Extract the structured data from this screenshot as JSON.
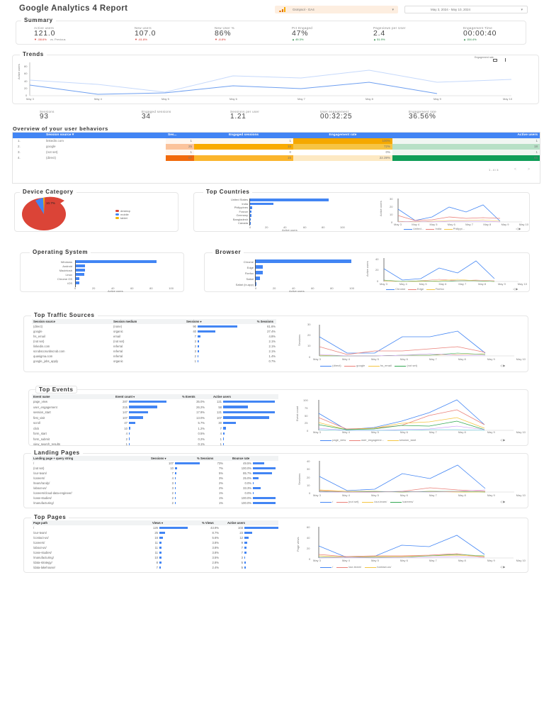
{
  "header": {
    "title": "Google Analytics 4 Report",
    "property_selector": "Gsmpsol - GA4",
    "date_range": "May 3, 2024 - May 10, 2024",
    "chevron_glyph": "▾"
  },
  "summary": {
    "title": "Summary",
    "comparison_label": "vs. Previous",
    "kpis": [
      {
        "label": "Active users",
        "value": "121.0",
        "delta": "-58.6%",
        "direction": "down"
      },
      {
        "label": "New users",
        "value": "107.0",
        "delta": "-61.8%",
        "direction": "down"
      },
      {
        "label": "New User %",
        "value": "86%",
        "delta": "-8.8%",
        "direction": "down"
      },
      {
        "label": "Pct Engaged",
        "value": "47%",
        "delta": "49.3%",
        "direction": "up"
      },
      {
        "label": "Pageviews per User",
        "value": "2.4",
        "delta": "51.9%",
        "direction": "up"
      },
      {
        "label": "Engagement Time",
        "value": "00:00:40",
        "delta": "154.4%",
        "direction": "up"
      }
    ]
  },
  "trends": {
    "title": "Trends",
    "control_label": "Engagement rate",
    "ylabel": "Active users",
    "yticks": [
      "0",
      "20",
      "40",
      "60",
      "80"
    ],
    "xticks": [
      "May 3",
      "May 4",
      "May 5",
      "May 6",
      "May 7",
      "May 8",
      "May 9",
      "May 10"
    ],
    "stats": [
      {
        "label": "Sessions",
        "value": "93"
      },
      {
        "label": "Engaged sessions",
        "value": "34"
      },
      {
        "label": "Sessions per user",
        "value": "1.21"
      },
      {
        "label": "User engagement",
        "value": "00:32:25"
      },
      {
        "label": "Engagement rate",
        "value": "36.56%"
      }
    ]
  },
  "overview": {
    "title": "Overview of your user behaviors",
    "columns": [
      "Session source ▾",
      "Ses...",
      "Engaged sessions",
      "Engagement rate",
      "Active users"
    ],
    "rows": [
      {
        "idx": "1.",
        "source": "linkedin.com",
        "sessions": "1",
        "engaged": "1",
        "rate": "100%",
        "active": "1"
      },
      {
        "idx": "2.",
        "source": "google",
        "sessions": "25",
        "engaged": "18",
        "rate": "72%",
        "active": "18"
      },
      {
        "idx": "3.",
        "source": "(not set)",
        "sessions": "1",
        "engaged": "0",
        "rate": "0%",
        "active": "1"
      },
      {
        "idx": "4.",
        "source": "(direct)",
        "sessions": "67",
        "engaged": "15",
        "rate": "22.39%",
        "active": "65"
      }
    ],
    "pagination": "1 - 4 / 4",
    "prev_glyph": "<",
    "next_glyph": ">"
  },
  "device": {
    "title": "Device Category",
    "legend": [
      "desktop",
      "mobile",
      "tablet"
    ],
    "labels": [
      "88.4%",
      "10.7%"
    ]
  },
  "countries": {
    "title": "Top Countries",
    "xlabel": "Active users",
    "ylabel": "Active users",
    "xticks": [
      "0",
      "20",
      "40",
      "60",
      "80",
      "100"
    ],
    "line_yticks": [
      "0",
      "10",
      "20",
      "30"
    ],
    "line_xticks": [
      "May 3",
      "May 4",
      "May 5",
      "May 6",
      "May 7",
      "May 8",
      "May 9",
      "May 10"
    ],
    "legend": [
      "United...",
      "India",
      "Philippi..."
    ]
  },
  "os": {
    "title": "Operating System",
    "xlabel": "Active users",
    "xticks": [
      "0",
      "20",
      "40",
      "60",
      "80",
      "100"
    ]
  },
  "browser": {
    "title": "Browser",
    "xlabel": "Active users",
    "ylabel": "Active users",
    "xticks": [
      "0",
      "20",
      "40",
      "60",
      "80",
      "100"
    ],
    "line_yticks": [
      "0",
      "20",
      "40"
    ],
    "line_xticks": [
      "May 3",
      "May 4",
      "May 5",
      "May 6",
      "May 7",
      "May 8",
      "May 9",
      "May 10"
    ],
    "legend": [
      "Chrome",
      "Edge",
      "Firefox"
    ]
  },
  "traffic": {
    "title": "Top Traffic Sources",
    "columns": [
      "Session source",
      "Session medium",
      "Sessions ▾",
      "% Sessions"
    ],
    "rows": [
      {
        "source": "(direct)",
        "medium": "(none)",
        "sessions": "90",
        "pct": "61.6%"
      },
      {
        "source": "google",
        "medium": "organic",
        "sessions": "40",
        "pct": "27.4%"
      },
      {
        "source": "hs_email",
        "medium": "email",
        "sessions": "7",
        "pct": "4.8%"
      },
      {
        "source": "(not set)",
        "medium": "(not set)",
        "sessions": "3",
        "pct": "2.1%"
      },
      {
        "source": "linkedin.com",
        "medium": "referral",
        "sessions": "3",
        "pct": "2.1%"
      },
      {
        "source": "scrubscorunbscrub.com",
        "medium": "referral",
        "sessions": "3",
        "pct": "2.1%"
      },
      {
        "source": "quasigma.com",
        "medium": "referral",
        "sessions": "2",
        "pct": "1.4%"
      },
      {
        "source": "google_jobs_apply",
        "medium": "organic",
        "sessions": "1",
        "pct": "0.7%"
      }
    ],
    "ylabel": "Sessions",
    "line_yticks": [
      "0",
      "10",
      "20",
      "30"
    ],
    "line_xticks": [
      "May 3",
      "May 4",
      "May 5",
      "May 6",
      "May 7",
      "May 8",
      "May 9",
      "May 10"
    ],
    "legend": [
      "(direct)",
      "google",
      "hs_email",
      "(not set)"
    ]
  },
  "events": {
    "title": "Top Events",
    "columns": [
      "Event name",
      "Event count ▾",
      "% Events",
      "Active users"
    ],
    "rows": [
      {
        "name": "page_view",
        "count": "287",
        "pct": "35.0%",
        "users": "121"
      },
      {
        "name": "user_engagement",
        "count": "215",
        "pct": "26.2%",
        "users": "58"
      },
      {
        "name": "session_start",
        "count": "147",
        "pct": "17.9%",
        "users": "121"
      },
      {
        "name": "first_visit",
        "count": "107",
        "pct": "13.0%",
        "users": "107"
      },
      {
        "name": "scroll",
        "count": "47",
        "pct": "5.7%",
        "users": "30"
      },
      {
        "name": "click",
        "count": "10",
        "pct": "1.2%",
        "users": "7"
      },
      {
        "name": "form_start",
        "count": "4",
        "pct": "0.5%",
        "users": "4"
      },
      {
        "name": "form_submit",
        "count": "2",
        "pct": "0.2%",
        "users": "1"
      },
      {
        "name": "view_search_results",
        "count": "1",
        "pct": "0.1%",
        "users": "1"
      }
    ],
    "ylabel": "Event count",
    "line_yticks": [
      "0",
      "25",
      "50",
      "75",
      "100"
    ],
    "line_xticks": [
      "May 3",
      "May 4",
      "May 5",
      "May 6",
      "May 7",
      "May 8",
      "May 9",
      "May 10"
    ],
    "legend": [
      "page_view",
      "user_engageme...",
      "session_start"
    ]
  },
  "landing": {
    "title": "Landing Pages",
    "columns": [
      "Landing page + query string",
      "Sessions ▾",
      "% Sessions",
      "Bounce rate"
    ],
    "rows": [
      {
        "page": "/",
        "sessions": "107",
        "pct": "73%",
        "bounce": "49.5%"
      },
      {
        "page": "(not set)",
        "sessions": "10",
        "pct": "7%",
        "bounce": "100.0%"
      },
      {
        "page": "/our-team/",
        "sessions": "7",
        "pct": "5%",
        "bounce": "85.7%"
      },
      {
        "page": "/careers/",
        "sessions": "4",
        "pct": "3%",
        "bounce": "25.0%"
      },
      {
        "page": "/team/randy/",
        "sessions": "3",
        "pct": "2%",
        "bounce": "0.0%"
      },
      {
        "page": "/about-us/",
        "sessions": "3",
        "pct": "2%",
        "bounce": "33.3%"
      },
      {
        "page": "/careers/cloud-data-engineer/",
        "sessions": "2",
        "pct": "1%",
        "bounce": "0.0%"
      },
      {
        "page": "/case-studies/",
        "sessions": "2",
        "pct": "1%",
        "bounce": "100.0%"
      },
      {
        "page": "/manufacturing/",
        "sessions": "2",
        "pct": "1%",
        "bounce": "100.0%"
      }
    ],
    "ylabel": "Sessions",
    "line_yticks": [
      "0",
      "10",
      "20",
      "30",
      "40"
    ],
    "line_xticks": [
      "May 3",
      "May 4",
      "May 5",
      "May 6",
      "May 7",
      "May 8",
      "May 9",
      "May 10"
    ],
    "legend": [
      "/",
      "(not set)",
      "/our-team/",
      "/careers/"
    ]
  },
  "pages": {
    "title": "Top Pages",
    "columns": [
      "Page path",
      "Views ▾",
      "% Views",
      "Active users"
    ],
    "rows": [
      {
        "path": "/",
        "views": "126",
        "pct": "43.9%",
        "users": "103"
      },
      {
        "path": "/our-team/",
        "views": "25",
        "pct": "8.7%",
        "users": "23"
      },
      {
        "path": "/contact-us/",
        "views": "16",
        "pct": "5.6%",
        "users": "12"
      },
      {
        "path": "/careers/",
        "views": "11",
        "pct": "3.8%",
        "users": "9"
      },
      {
        "path": "/about-us/",
        "views": "11",
        "pct": "3.8%",
        "users": "7"
      },
      {
        "path": "/case-studies/",
        "views": "11",
        "pct": "3.8%",
        "users": "7"
      },
      {
        "path": "/manufacturing/",
        "views": "10",
        "pct": "3.5%",
        "users": "3"
      },
      {
        "path": "/data-strategy/",
        "views": "8",
        "pct": "2.8%",
        "users": "5"
      },
      {
        "path": "/data-lakehouse/",
        "views": "7",
        "pct": "2.4%",
        "users": "5"
      }
    ],
    "ylabel": "Page views",
    "line_yticks": [
      "0",
      "20",
      "40",
      "60"
    ],
    "line_xticks": [
      "May 3",
      "May 4",
      "May 5",
      "May 6",
      "May 7",
      "May 8",
      "May 9",
      "May 10"
    ],
    "legend": [
      "/",
      "/our-team/",
      "/contact-us/"
    ]
  },
  "colors": {
    "accent": "#4285f4",
    "negative": "#d93025",
    "positive": "#188038",
    "desktop": "#db4437",
    "mobile": "#4285f4",
    "tablet": "#f4b400"
  }
}
